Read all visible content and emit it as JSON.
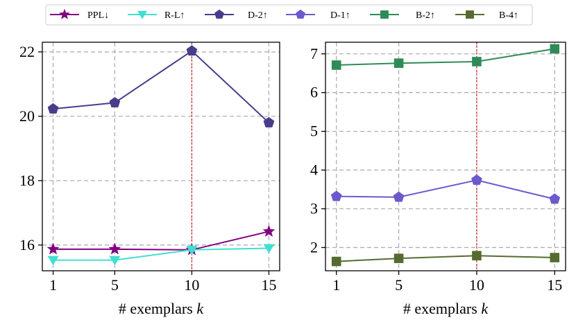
{
  "legend": [
    {
      "id": "ppl",
      "label": "PPL↓",
      "color": "#800080",
      "marker": "star"
    },
    {
      "id": "rl",
      "label": "R-L↑",
      "color": "#40e0d0",
      "marker": "triangle-down"
    },
    {
      "id": "d2",
      "label": "D-2↑",
      "color": "#483d8b",
      "marker": "pentagon"
    },
    {
      "id": "d1",
      "label": "D-1↑",
      "color": "#6a5acd",
      "marker": "pentagon"
    },
    {
      "id": "b2",
      "label": "B-2↑",
      "color": "#2e8b57",
      "marker": "square"
    },
    {
      "id": "b4",
      "label": "B-4↑",
      "color": "#556b2f",
      "marker": "square"
    }
  ],
  "chart_data": [
    {
      "type": "line",
      "x": [
        1,
        5,
        10,
        15
      ],
      "xticks": [
        "1",
        "5",
        "10",
        "15"
      ],
      "yticks": [
        16,
        18,
        20,
        22
      ],
      "ylim": [
        15.2,
        22.3
      ],
      "reference_x": 10,
      "xlabel_prefix": "# exemplars ",
      "xlabel_var": "k",
      "grid": true,
      "series": [
        {
          "name": "PPL↓",
          "legend": "ppl",
          "values": [
            15.87,
            15.87,
            15.85,
            16.42
          ]
        },
        {
          "name": "R-L↑",
          "legend": "rl",
          "values": [
            15.53,
            15.53,
            15.85,
            15.9
          ]
        },
        {
          "name": "D-2↑",
          "legend": "d2",
          "values": [
            20.23,
            20.42,
            22.03,
            19.8
          ]
        }
      ]
    },
    {
      "type": "line",
      "x": [
        1,
        5,
        10,
        15
      ],
      "xticks": [
        "1",
        "5",
        "10",
        "15"
      ],
      "yticks": [
        2,
        3,
        4,
        5,
        6,
        7
      ],
      "ylim": [
        1.4,
        7.3
      ],
      "reference_x": 10,
      "xlabel_prefix": "# exemplars ",
      "xlabel_var": "k",
      "grid": true,
      "series": [
        {
          "name": "B-2↑",
          "legend": "b2",
          "values": [
            6.71,
            6.76,
            6.8,
            7.13
          ]
        },
        {
          "name": "D-1↑",
          "legend": "d1",
          "values": [
            3.32,
            3.3,
            3.74,
            3.25
          ]
        },
        {
          "name": "B-4↑",
          "legend": "b4",
          "values": [
            1.64,
            1.72,
            1.79,
            1.74
          ]
        }
      ]
    }
  ]
}
